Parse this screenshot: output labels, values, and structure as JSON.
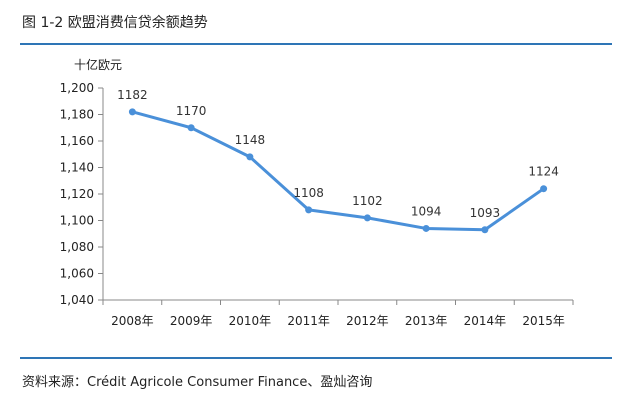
{
  "figure": {
    "title": "图 1-2 欧盟消费信贷余额趋势",
    "source": "资料来源：Crédit Agricole Consumer Finance、盈灿咨询"
  },
  "colors": {
    "accent": "#2e75b6",
    "line": "#4a90d9",
    "axis": "#888888"
  },
  "chart_data": {
    "type": "line",
    "title": "",
    "xlabel": "",
    "ylabel": "十亿欧元",
    "categories": [
      "2008年",
      "2009年",
      "2010年",
      "2011年",
      "2012年",
      "2013年",
      "2014年",
      "2015年"
    ],
    "series": [
      {
        "values": [
          1182,
          1170,
          1148,
          1108,
          1102,
          1094,
          1093,
          1124
        ]
      }
    ],
    "data_labels": [
      "1182",
      "1170",
      "1148",
      "1108",
      "1102",
      "1094",
      "1093",
      "1124"
    ],
    "ylim": [
      1040,
      1200
    ],
    "yticks": [
      1040,
      1060,
      1080,
      1100,
      1120,
      1140,
      1160,
      1180,
      1200
    ],
    "ytick_labels": [
      "1,040",
      "1,060",
      "1,080",
      "1,100",
      "1,120",
      "1,140",
      "1,160",
      "1,180",
      "1,200"
    ],
    "grid": false,
    "legend": "none"
  }
}
